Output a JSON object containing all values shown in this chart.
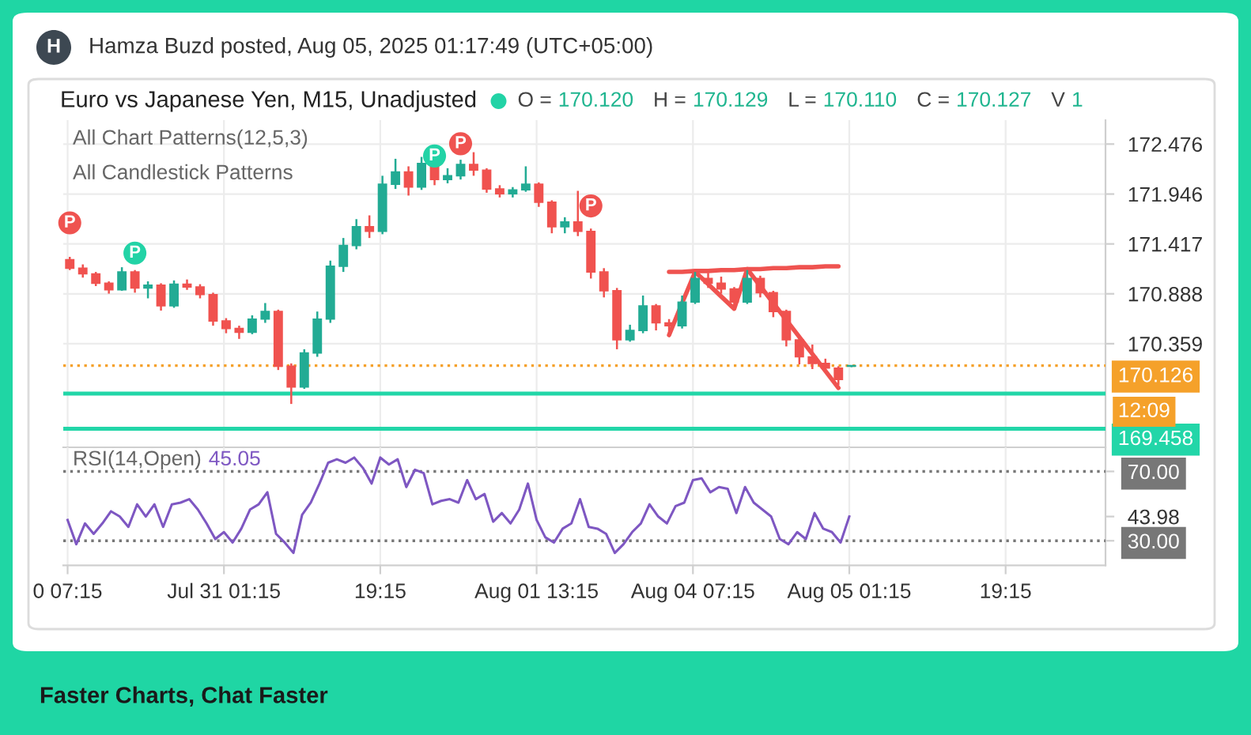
{
  "chart_data": [
    {
      "type": "candlestick",
      "title": "Euro vs Japanese Yen, M15, Unadjusted",
      "categories": [
        null,
        null,
        null,
        null,
        null,
        null,
        null,
        null,
        null,
        null,
        null,
        null,
        null,
        null,
        null,
        null,
        null,
        null,
        null,
        null,
        null,
        null,
        null,
        null,
        null,
        null,
        null,
        null,
        null,
        null,
        null,
        null,
        null,
        null,
        null,
        null,
        null,
        null,
        null,
        null,
        null,
        null,
        null,
        null,
        null,
        null,
        null,
        null,
        null,
        null,
        null,
        null,
        null,
        null,
        null,
        null,
        null,
        null,
        null,
        null,
        null,
        null,
        null,
        null,
        null,
        null,
        null,
        null,
        null,
        null,
        null,
        null,
        null,
        null,
        null,
        null,
        null,
        null,
        null,
        null
      ],
      "ohlc": [
        [
          171.25,
          171.28,
          171.14,
          171.16
        ],
        [
          171.16,
          171.2,
          171.06,
          171.1
        ],
        [
          171.1,
          171.12,
          170.97,
          171.0
        ],
        [
          171.0,
          171.02,
          170.89,
          170.93
        ],
        [
          170.93,
          171.17,
          170.92,
          171.12
        ],
        [
          171.12,
          171.14,
          170.9,
          170.95
        ],
        [
          170.95,
          171.02,
          170.84,
          170.98
        ],
        [
          170.98,
          171.0,
          170.71,
          170.76
        ],
        [
          170.76,
          171.03,
          170.74,
          170.99
        ],
        [
          170.99,
          171.04,
          170.93,
          170.96
        ],
        [
          170.96,
          170.99,
          170.84,
          170.88
        ],
        [
          170.88,
          170.9,
          170.55,
          170.6
        ],
        [
          170.6,
          170.63,
          170.47,
          170.52
        ],
        [
          170.52,
          170.55,
          170.41,
          170.48
        ],
        [
          170.48,
          170.66,
          170.46,
          170.62
        ],
        [
          170.62,
          170.79,
          170.58,
          170.7
        ],
        [
          170.7,
          170.72,
          170.08,
          170.12
        ],
        [
          170.12,
          170.15,
          169.72,
          169.9
        ],
        [
          169.9,
          170.3,
          169.88,
          170.26
        ],
        [
          170.26,
          170.7,
          170.22,
          170.62
        ],
        [
          170.62,
          171.24,
          170.58,
          171.18
        ],
        [
          171.18,
          171.48,
          171.12,
          171.4
        ],
        [
          171.4,
          171.68,
          171.36,
          171.6
        ],
        [
          171.6,
          171.72,
          171.48,
          171.55
        ],
        [
          171.55,
          172.14,
          171.52,
          172.05
        ],
        [
          172.05,
          172.32,
          172.0,
          172.18
        ],
        [
          172.18,
          172.24,
          171.93,
          172.02
        ],
        [
          172.02,
          172.34,
          171.99,
          172.27
        ],
        [
          172.27,
          172.29,
          172.04,
          172.1
        ],
        [
          172.1,
          172.22,
          172.06,
          172.14
        ],
        [
          172.14,
          172.31,
          172.1,
          172.26
        ],
        [
          172.26,
          172.39,
          172.14,
          172.2
        ],
        [
          172.2,
          172.22,
          171.96,
          172.0
        ],
        [
          172.0,
          172.04,
          171.91,
          171.95
        ],
        [
          171.95,
          172.02,
          171.91,
          171.99
        ],
        [
          171.99,
          172.24,
          171.97,
          172.05
        ],
        [
          172.05,
          172.07,
          171.81,
          171.86
        ],
        [
          171.86,
          171.88,
          171.53,
          171.6
        ],
        [
          171.6,
          171.7,
          171.53,
          171.65
        ],
        [
          171.65,
          171.98,
          171.5,
          171.55
        ],
        [
          171.55,
          171.58,
          171.05,
          171.12
        ],
        [
          171.12,
          171.16,
          170.85,
          170.92
        ],
        [
          170.92,
          170.95,
          170.3,
          170.4
        ],
        [
          170.4,
          170.56,
          170.38,
          170.5
        ],
        [
          170.5,
          170.87,
          170.47,
          170.76
        ],
        [
          170.76,
          170.78,
          170.5,
          170.58
        ],
        [
          170.58,
          170.62,
          170.44,
          170.55
        ],
        [
          170.55,
          170.87,
          170.52,
          170.8
        ],
        [
          170.8,
          171.12,
          170.78,
          171.05
        ],
        [
          171.05,
          171.11,
          170.95,
          171.0
        ],
        [
          171.0,
          171.07,
          170.89,
          170.94
        ],
        [
          170.94,
          170.96,
          170.74,
          170.8
        ],
        [
          170.8,
          171.14,
          170.78,
          171.05
        ],
        [
          171.05,
          171.08,
          170.85,
          170.9
        ],
        [
          170.9,
          170.92,
          170.64,
          170.7
        ],
        [
          170.7,
          170.72,
          170.33,
          170.4
        ],
        [
          170.4,
          170.45,
          170.14,
          170.22
        ],
        [
          170.22,
          170.35,
          170.09,
          170.15
        ],
        [
          170.15,
          170.2,
          170.06,
          170.1
        ],
        [
          170.1,
          170.12,
          169.92,
          169.98
        ],
        [
          170.12,
          170.129,
          170.11,
          170.127
        ],
        null,
        null,
        null,
        null,
        null,
        null,
        null,
        null,
        null,
        null,
        null,
        null,
        null,
        null,
        null,
        null,
        null,
        null,
        null
      ],
      "colors": [
        "#f0524f",
        "#f0524f",
        "#f0524f",
        "#f0524f",
        "#22ab94",
        "#f0524f",
        "#22ab94",
        "#f0524f",
        "#22ab94",
        "#f0524f",
        "#f0524f",
        "#f0524f",
        "#f0524f",
        "#f0524f",
        "#22ab94",
        "#22ab94",
        "#f0524f",
        "#f0524f",
        "#22ab94",
        "#22ab94",
        "#22ab94",
        "#22ab94",
        "#22ab94",
        "#f0524f",
        "#22ab94",
        "#22ab94",
        "#f0524f",
        "#22ab94",
        "#f0524f",
        "#22ab94",
        "#22ab94",
        "#f0524f",
        "#f0524f",
        "#f0524f",
        "#22ab94",
        "#22ab94",
        "#f0524f",
        "#f0524f",
        "#22ab94",
        "#f0524f",
        "#f0524f",
        "#f0524f",
        "#f0524f",
        "#22ab94",
        "#22ab94",
        "#f0524f",
        "#f0524f",
        "#22ab94",
        "#22ab94",
        "#f0524f",
        "#f0524f",
        "#f0524f",
        "#22ab94",
        "#f0524f",
        "#f0524f",
        "#f0524f",
        "#f0524f",
        "#f0524f",
        "#f0524f",
        "#f0524f",
        "#22ab94",
        null,
        null,
        null,
        null,
        null,
        null,
        null,
        null,
        null,
        null,
        null,
        null,
        null,
        null,
        null,
        null,
        null,
        null,
        null
      ],
      "series": [
        {
          "type": "line",
          "color": "#ef5350",
          "values": [
            null,
            null,
            null,
            null,
            null,
            null,
            null,
            null,
            null,
            null,
            null,
            null,
            null,
            null,
            null,
            null,
            null,
            null,
            null,
            null,
            null,
            null,
            null,
            null,
            null,
            null,
            null,
            null,
            null,
            null,
            null,
            null,
            null,
            null,
            null,
            null,
            null,
            null,
            null,
            null,
            null,
            null,
            null,
            null,
            null,
            null,
            171.12,
            171.12,
            171.13,
            171.13,
            171.14,
            171.14,
            171.15,
            171.15,
            171.16,
            171.16,
            171.17,
            171.17,
            171.18,
            171.18,
            null,
            null,
            null,
            null,
            null,
            null,
            null,
            null,
            null,
            null,
            null,
            null,
            null,
            null,
            null,
            null,
            null,
            null,
            null,
            null
          ]
        },
        {
          "type": "line",
          "color": "#ef5350",
          "values": [
            null,
            null,
            null,
            null,
            null,
            null,
            null,
            null,
            null,
            null,
            null,
            null,
            null,
            null,
            null,
            null,
            null,
            null,
            null,
            null,
            null,
            null,
            null,
            null,
            null,
            null,
            null,
            null,
            null,
            null,
            null,
            null,
            null,
            null,
            null,
            null,
            null,
            null,
            null,
            null,
            null,
            null,
            null,
            null,
            null,
            null,
            170.45,
            170.79,
            171.12,
            170.99,
            170.86,
            170.73,
            171.15,
            170.97,
            170.79,
            170.61,
            170.43,
            170.25,
            170.07,
            169.89,
            null,
            null,
            null,
            null,
            null,
            null,
            null,
            null,
            null,
            null,
            null,
            null,
            null,
            null,
            null,
            null,
            null,
            null,
            null,
            null
          ]
        },
        {
          "type": "scatter",
          "color": "#22d3a6",
          "marker": "circle",
          "values": [
            null,
            null,
            null,
            null,
            null,
            171.32,
            null,
            null,
            null,
            null,
            null,
            null,
            null,
            null,
            null,
            null,
            null,
            null,
            null,
            null,
            null,
            null,
            null,
            null,
            null,
            null,
            null,
            null,
            172.35,
            null,
            null,
            null,
            null,
            null,
            null,
            null,
            null,
            null,
            null,
            null,
            null,
            null,
            null,
            null,
            null,
            null,
            null,
            null,
            null,
            null,
            null,
            null,
            null,
            null,
            null,
            null,
            null,
            null,
            null,
            null,
            null,
            null,
            null,
            null,
            null,
            null,
            null,
            null,
            null,
            null,
            null,
            null,
            null,
            null,
            null,
            null,
            null,
            null,
            null,
            null
          ],
          "value_labels": [
            null,
            null,
            null,
            null,
            null,
            "P",
            null,
            null,
            null,
            null,
            null,
            null,
            null,
            null,
            null,
            null,
            null,
            null,
            null,
            null,
            null,
            null,
            null,
            null,
            null,
            null,
            null,
            null,
            "P",
            null,
            null,
            null,
            null,
            null,
            null,
            null,
            null,
            null,
            null,
            null,
            null,
            null,
            null,
            null,
            null,
            null,
            null,
            null,
            null,
            null,
            null,
            null,
            null,
            null,
            null,
            null,
            null,
            null,
            null,
            null,
            null,
            null,
            null,
            null,
            null,
            null,
            null,
            null,
            null,
            null,
            null,
            null,
            null,
            null,
            null,
            null,
            null,
            null,
            null,
            null
          ]
        },
        {
          "type": "scatter",
          "color": "#ef5350",
          "marker": "circle",
          "values": [
            171.64,
            null,
            null,
            null,
            null,
            null,
            null,
            null,
            null,
            null,
            null,
            null,
            null,
            null,
            null,
            null,
            null,
            null,
            null,
            null,
            null,
            null,
            null,
            null,
            null,
            null,
            null,
            null,
            null,
            null,
            172.48,
            null,
            null,
            null,
            null,
            null,
            null,
            null,
            null,
            null,
            171.82,
            null,
            null,
            null,
            null,
            null,
            null,
            null,
            null,
            null,
            null,
            null,
            null,
            null,
            null,
            null,
            null,
            null,
            null,
            null,
            null,
            null,
            null,
            null,
            null,
            null,
            null,
            null,
            null,
            null,
            null,
            null,
            null,
            null,
            null,
            null,
            null,
            null,
            null,
            null
          ],
          "value_labels": [
            "P",
            null,
            null,
            null,
            null,
            null,
            null,
            null,
            null,
            null,
            null,
            null,
            null,
            null,
            null,
            null,
            null,
            null,
            null,
            null,
            null,
            null,
            null,
            null,
            null,
            null,
            null,
            null,
            null,
            null,
            "P",
            null,
            null,
            null,
            null,
            null,
            null,
            null,
            null,
            null,
            "P",
            null,
            null,
            null,
            null,
            null,
            null,
            null,
            null,
            null,
            null,
            null,
            null,
            null,
            null,
            null,
            null,
            null,
            null,
            null,
            null,
            null,
            null,
            null,
            null,
            null,
            null,
            null,
            null,
            null,
            null,
            null,
            null,
            null,
            null,
            null,
            null,
            null,
            null,
            null
          ]
        }
      ],
      "ylim": [
        169.26,
        172.73
      ],
      "yticks": [
        172.476,
        171.946,
        171.417,
        170.888,
        170.359
      ],
      "tick_labels": "y",
      "grid": true,
      "ref_lines": [
        {
          "axis": "y",
          "value": 170.126,
          "label": "170.126",
          "color": "#f5a12a",
          "line_style": "dotted"
        },
        {
          "axis": "y",
          "value": 169.83,
          "color": "#22d6a8",
          "line_style": "solid"
        },
        {
          "axis": "y",
          "value": 169.458,
          "label": "169.458",
          "color": "#22d6a8",
          "line_style": "solid"
        }
      ],
      "annotations": [
        "H",
        "Hamza Buzd posted, Aug 05, 2025 01:17:49 (UTC+05:00)",
        "All Chart Patterns(12,5,3)",
        "All Candlestick Patterns",
        "O =",
        "170.120",
        "H =",
        "170.129",
        "L =",
        "170.110",
        "C =",
        "170.127",
        "V",
        "1",
        "12:09",
        "Faster Charts, Chat Faster"
      ]
    },
    {
      "type": "line",
      "title": "RSI(14,Open)",
      "categories": [
        "0 07:15",
        null,
        null,
        null,
        null,
        null,
        null,
        null,
        null,
        null,
        null,
        null,
        null,
        null,
        null,
        null,
        null,
        null,
        "Jul 31 01:15",
        null,
        null,
        null,
        null,
        null,
        null,
        null,
        null,
        null,
        null,
        null,
        null,
        null,
        null,
        null,
        null,
        null,
        "19:15",
        null,
        null,
        null,
        null,
        null,
        null,
        null,
        null,
        null,
        null,
        null,
        null,
        null,
        null,
        null,
        null,
        null,
        "Aug 01 13:15",
        null,
        null,
        null,
        null,
        null,
        null,
        null,
        null,
        null,
        null,
        null,
        null,
        null,
        null,
        null,
        null,
        null,
        "Aug 04 07:15",
        null,
        null,
        null,
        null,
        null,
        null,
        null,
        null,
        null,
        null,
        null,
        null,
        null,
        null,
        null,
        null,
        null,
        "Aug 05 01:15",
        null,
        null,
        null,
        null,
        null,
        null,
        null,
        null,
        null,
        null,
        null,
        null,
        null,
        null,
        null,
        null,
        null,
        "19:15",
        null,
        null,
        null,
        null,
        null,
        null,
        null,
        null,
        null,
        null,
        null
      ],
      "values": [
        42,
        28,
        40,
        34,
        40,
        47,
        44,
        38,
        51,
        44,
        51,
        38,
        51,
        52,
        54,
        48,
        40,
        31,
        35,
        29,
        37,
        48,
        51,
        58,
        34,
        29,
        23,
        45,
        52,
        63,
        75,
        77,
        75,
        78,
        72,
        63,
        78,
        74,
        77,
        61,
        71,
        69,
        51,
        53,
        54,
        52,
        65,
        54,
        57,
        41,
        46,
        40,
        48,
        63,
        42,
        32,
        29,
        37,
        40,
        54,
        38,
        37,
        34,
        23,
        28,
        35,
        40,
        51,
        44,
        40,
        50,
        52,
        65,
        66,
        58,
        61,
        60,
        46,
        61,
        52,
        48,
        44,
        31,
        28,
        35,
        31,
        46,
        37,
        35,
        29,
        43.98,
        null,
        null,
        null,
        null,
        null,
        null,
        null,
        null,
        null,
        null,
        null,
        null,
        null,
        null,
        null,
        null,
        null,
        null,
        null,
        null,
        null,
        null,
        null,
        null,
        null,
        null,
        null,
        null,
        null
      ],
      "color": "#7e57c2",
      "ylim": [
        15.8,
        83.9
      ],
      "yticks": [
        {
          "value": 30,
          "label": "30.00"
        },
        {
          "value": 43.98,
          "label": "43.98"
        },
        {
          "value": 70,
          "label": "70.00"
        }
      ],
      "grid": "x",
      "ref_lines": [
        {
          "axis": "y",
          "value": 70,
          "color": "#777777",
          "line_style": "dotted"
        },
        {
          "axis": "y",
          "value": 30,
          "color": "#777777",
          "line_style": "dotted"
        }
      ],
      "annotations": [
        "45.05"
      ]
    }
  ]
}
